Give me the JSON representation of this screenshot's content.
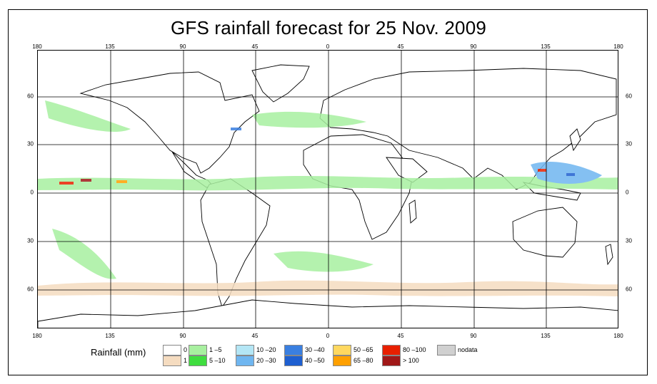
{
  "title": "GFS rainfall forecast for 25 Nov. 2009",
  "axes": {
    "lon_labels": [
      "180",
      "135",
      "90",
      "45",
      "0",
      "45",
      "90",
      "135",
      "180"
    ],
    "lat_labels": [
      "60",
      "30",
      "0",
      "30",
      "60"
    ]
  },
  "legend": {
    "title": "Rainfall (mm)",
    "items": [
      {
        "label": "0",
        "color": "#ffffff"
      },
      {
        "label": "1",
        "color": "#f5dcc0"
      },
      {
        "label": "1 –5",
        "color": "#a8f0a0"
      },
      {
        "label": "5 –10",
        "color": "#3fdd3f"
      },
      {
        "label": "10 –20",
        "color": "#b4e6f5"
      },
      {
        "label": "20 –30",
        "color": "#6fb6f0"
      },
      {
        "label": "30 –40",
        "color": "#3a7fe0"
      },
      {
        "label": "40 –50",
        "color": "#1e5fd0"
      },
      {
        "label": "50 –65",
        "color": "#ffd860"
      },
      {
        "label": "65 –80",
        "color": "#ffa000"
      },
      {
        "label": "80 –100",
        "color": "#e82000"
      },
      {
        "label": "> 100",
        "color": "#a01818"
      },
      {
        "label": "nodata",
        "color": "#d0d0d0"
      }
    ]
  }
}
